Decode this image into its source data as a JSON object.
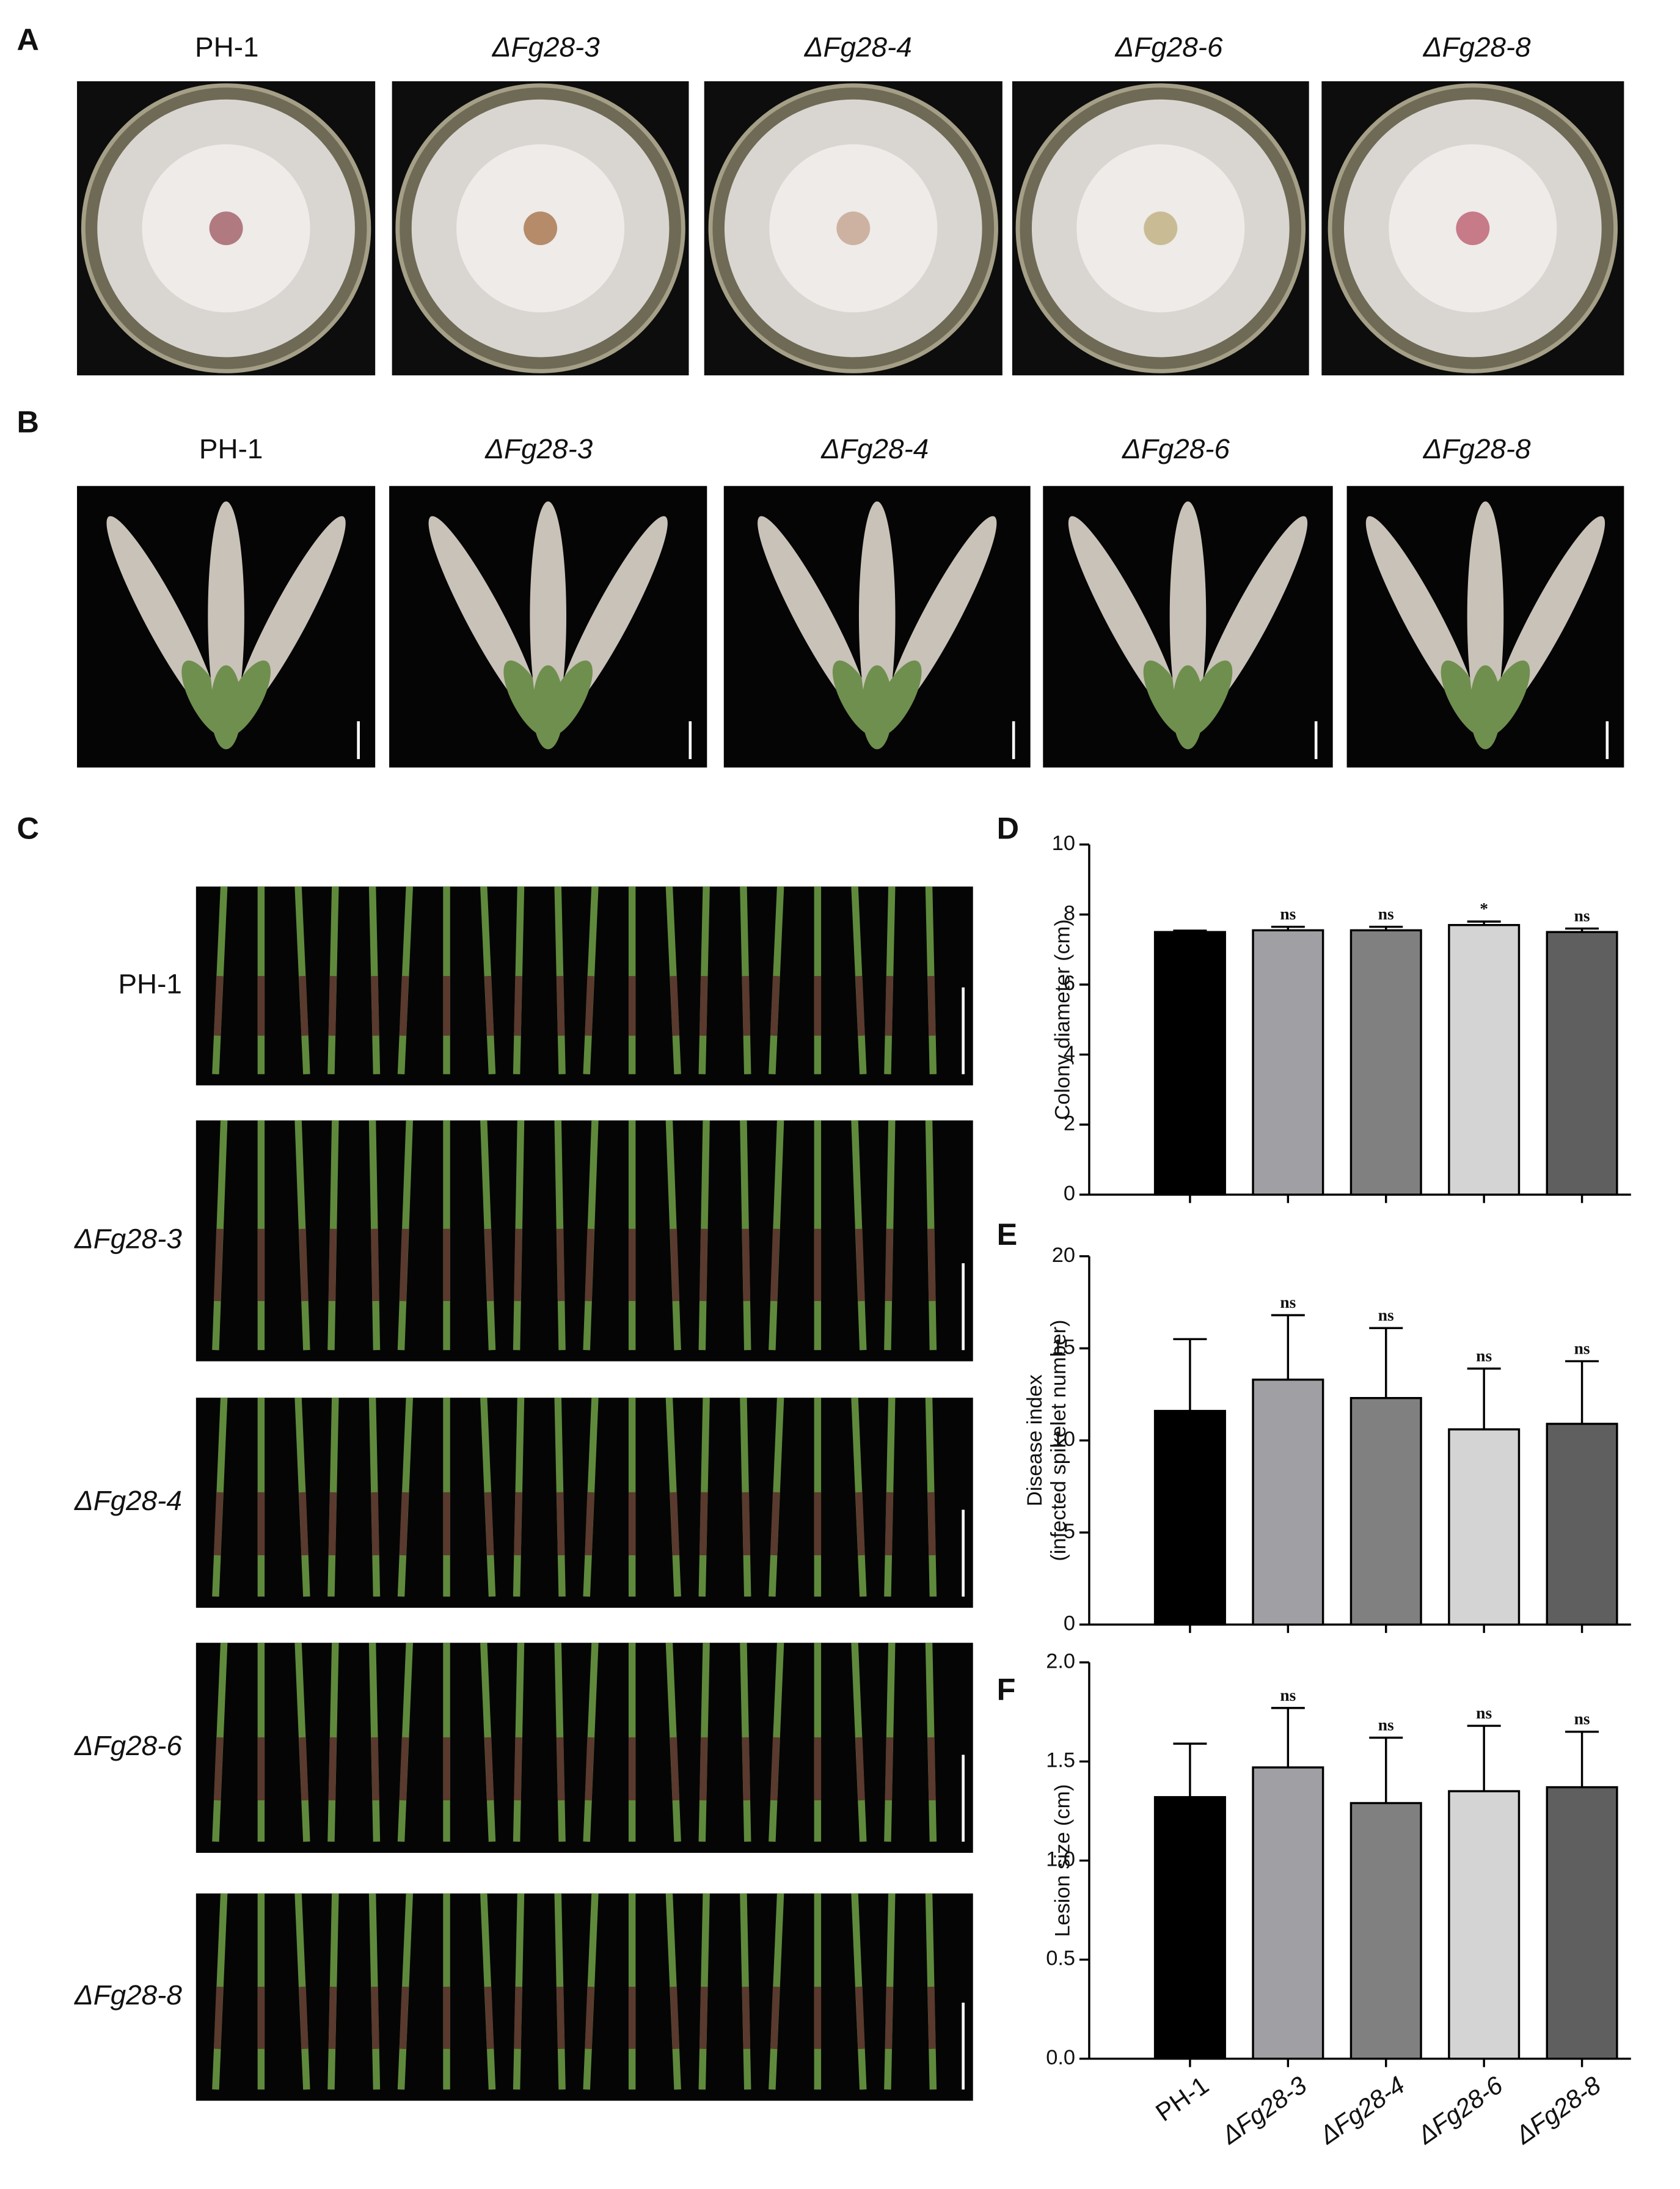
{
  "panels": {
    "A": {
      "label": "A",
      "strains": [
        "PH-1",
        "ΔFg28-3",
        "ΔFg28-4",
        "ΔFg28-6",
        "ΔFg28-8"
      ]
    },
    "B": {
      "label": "B",
      "strains": [
        "PH-1",
        "ΔFg28-3",
        "ΔFg28-4",
        "ΔFg28-6",
        "ΔFg28-8"
      ]
    },
    "C": {
      "label": "C",
      "strains": [
        "PH-1",
        "ΔFg28-3",
        "ΔFg28-4",
        "ΔFg28-6",
        "ΔFg28-8"
      ]
    }
  },
  "chart_data": [
    {
      "type": "bar",
      "panel": "D",
      "ylabel": "Colony diameter (cm)",
      "values": [
        7.5,
        7.55,
        7.55,
        7.7,
        7.5
      ],
      "errors": [
        0.04,
        0.1,
        0.1,
        0.1,
        0.1
      ],
      "annotations": [
        null,
        "ns",
        "ns",
        "*",
        "ns"
      ],
      "colors": [
        "#000000",
        "#a0a0a4",
        "#808080",
        "#d4d4d4",
        "#5f5f5f"
      ],
      "ylim": [
        0,
        10
      ],
      "yticks": [
        0,
        2,
        4,
        6,
        8,
        10
      ]
    },
    {
      "type": "bar",
      "panel": "E",
      "ylabel": [
        "Disease index",
        "(infected spikelet number)"
      ],
      "values": [
        11.6,
        13.3,
        12.3,
        10.6,
        10.9
      ],
      "errors": [
        3.9,
        3.5,
        3.8,
        3.3,
        3.4
      ],
      "annotations": [
        null,
        "ns",
        "ns",
        "ns",
        "ns"
      ],
      "colors": [
        "#000000",
        "#a0a0a4",
        "#808080",
        "#d4d4d4",
        "#5f5f5f"
      ],
      "ylim": [
        0,
        20
      ],
      "yticks": [
        0,
        5,
        10,
        15,
        20
      ]
    },
    {
      "type": "bar",
      "panel": "F",
      "ylabel": "Lesion size (cm)",
      "categories": [
        "PH-1",
        "ΔFg28-3",
        "ΔFg28-4",
        "ΔFg28-6",
        "ΔFg28-8"
      ],
      "values": [
        1.32,
        1.47,
        1.29,
        1.35,
        1.37
      ],
      "errors": [
        0.27,
        0.3,
        0.33,
        0.33,
        0.28
      ],
      "annotations": [
        null,
        "ns",
        "ns",
        "ns",
        "ns"
      ],
      "colors": [
        "#000000",
        "#a0a0a4",
        "#808080",
        "#d4d4d4",
        "#5f5f5f"
      ],
      "ylim": [
        0,
        2.0
      ],
      "yticks": [
        {
          "value": 0,
          "label": "0.0"
        },
        0.5,
        {
          "value": 1,
          "label": "1.0"
        },
        1.5,
        {
          "value": 2,
          "label": "2.0"
        }
      ]
    }
  ]
}
